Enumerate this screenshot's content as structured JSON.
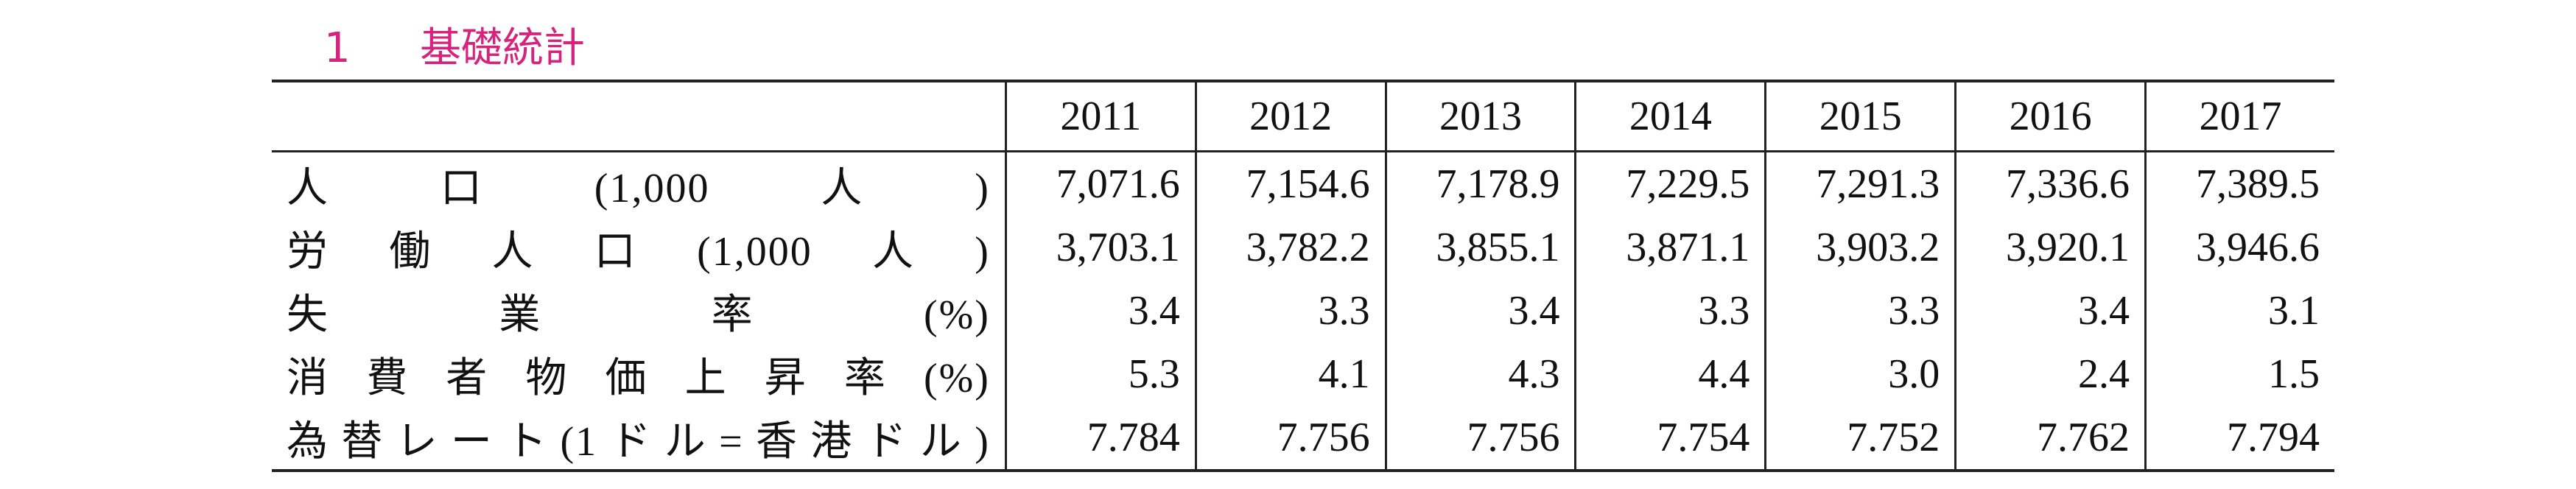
{
  "header": {
    "number": "1",
    "title": "基礎統計"
  },
  "table": {
    "columns": [
      "2011",
      "2012",
      "2013",
      "2014",
      "2015",
      "2016",
      "2017"
    ],
    "rows": [
      {
        "label": "人口(1,000人)",
        "values": [
          "7,071.6",
          "7,154.6",
          "7,178.9",
          "7,229.5",
          "7,291.3",
          "7,336.6",
          "7,389.5"
        ]
      },
      {
        "label": "労働人口(1,000人)",
        "values": [
          "3,703.1",
          "3,782.2",
          "3,855.1",
          "3,871.1",
          "3,903.2",
          "3,920.1",
          "3,946.6"
        ]
      },
      {
        "label": "失業率(%)",
        "values": [
          "3.4",
          "3.3",
          "3.4",
          "3.3",
          "3.3",
          "3.4",
          "3.1"
        ]
      },
      {
        "label": "消費者物価上昇率(%)",
        "values": [
          "5.3",
          "4.1",
          "4.3",
          "4.4",
          "3.0",
          "2.4",
          "1.5"
        ]
      },
      {
        "label": "為替レート(1ドル=香港ドル)",
        "values": [
          "7.784",
          "7.756",
          "7.756",
          "7.754",
          "7.752",
          "7.762",
          "7.794"
        ]
      }
    ]
  }
}
